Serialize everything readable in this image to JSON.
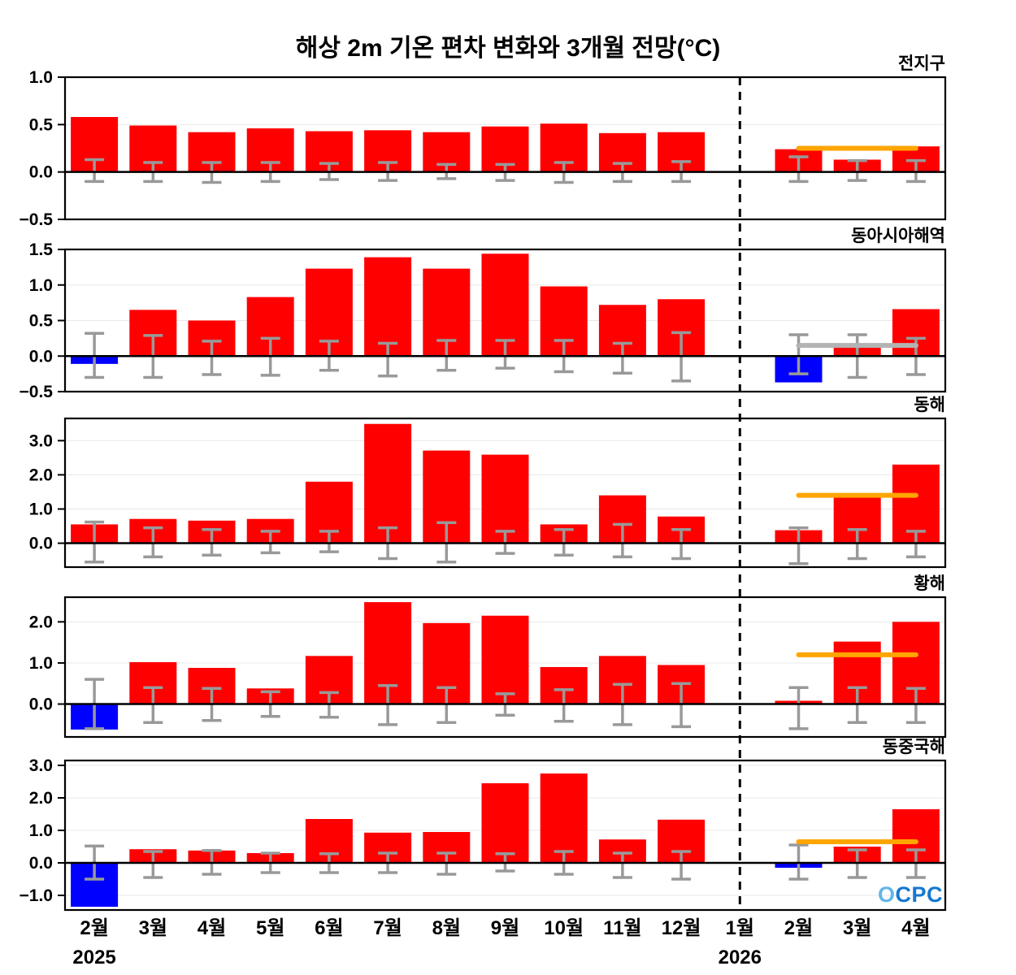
{
  "title": "해상 2m 기온 편차 변화와 3개월 전망(°C)",
  "logo": {
    "o": "O",
    "cpc": "CPC"
  },
  "colors": {
    "bar_positive": "#ff0000",
    "bar_negative": "#0000ff",
    "error_bar": "#999999",
    "forecast_orange": "#ffa500",
    "forecast_gray": "#b3b3b3",
    "axis": "#000000",
    "gridline": "#e8e8e8",
    "logo_o": "#63b5ea",
    "logo_cpc": "#1478d2"
  },
  "x_axis": {
    "labels": [
      "2월",
      "3월",
      "4월",
      "5월",
      "6월",
      "7월",
      "8월",
      "9월",
      "10월",
      "11월",
      "12월",
      "1월",
      "2월",
      "3월",
      "4월"
    ],
    "year_labels": [
      {
        "index": 0,
        "text": "2025"
      },
      {
        "index": 11,
        "text": "2026"
      }
    ],
    "dashed_line_at_index": 11
  },
  "chart_data": [
    {
      "type": "bar",
      "title": "전지구",
      "categories": [
        "2월",
        "3월",
        "4월",
        "5월",
        "6월",
        "7월",
        "8월",
        "9월",
        "10월",
        "11월",
        "12월",
        "1월",
        "2월",
        "3월",
        "4월"
      ],
      "ylim": [
        -0.5,
        1.0
      ],
      "yticks": [
        -0.5,
        0.0,
        0.5,
        1.0
      ],
      "values": [
        0.58,
        0.49,
        0.42,
        0.46,
        0.43,
        0.44,
        0.42,
        0.48,
        0.51,
        0.41,
        0.42,
        0,
        0.24,
        0.13,
        0.27
      ],
      "error_bars": [
        [
          -0.1,
          0.13
        ],
        [
          -0.1,
          0.1
        ],
        [
          -0.11,
          0.1
        ],
        [
          -0.1,
          0.1
        ],
        [
          -0.08,
          0.09
        ],
        [
          -0.09,
          0.1
        ],
        [
          -0.07,
          0.08
        ],
        [
          -0.09,
          0.08
        ],
        [
          -0.11,
          0.1
        ],
        [
          -0.1,
          0.09
        ],
        [
          -0.1,
          0.11
        ],
        null,
        [
          -0.1,
          0.16
        ],
        [
          -0.09,
          0.12
        ],
        [
          -0.1,
          0.12
        ]
      ],
      "forecast_line": {
        "value": 0.25,
        "color_key": "forecast_orange",
        "from_index": 12,
        "to_index": 14
      }
    },
    {
      "type": "bar",
      "title": "동아시아해역",
      "categories": [
        "2월",
        "3월",
        "4월",
        "5월",
        "6월",
        "7월",
        "8월",
        "9월",
        "10월",
        "11월",
        "12월",
        "1월",
        "2월",
        "3월",
        "4월"
      ],
      "ylim": [
        -0.5,
        1.5
      ],
      "yticks": [
        -0.5,
        0.0,
        0.5,
        1.0,
        1.5
      ],
      "values": [
        -0.11,
        0.65,
        0.5,
        0.83,
        1.23,
        1.39,
        1.23,
        1.44,
        0.98,
        0.72,
        0.8,
        0,
        -0.37,
        0.12,
        0.66
      ],
      "error_bars": [
        [
          -0.3,
          0.32
        ],
        [
          -0.3,
          0.29
        ],
        [
          -0.26,
          0.21
        ],
        [
          -0.27,
          0.25
        ],
        [
          -0.2,
          0.21
        ],
        [
          -0.28,
          0.18
        ],
        [
          -0.2,
          0.22
        ],
        [
          -0.17,
          0.22
        ],
        [
          -0.22,
          0.22
        ],
        [
          -0.24,
          0.18
        ],
        [
          -0.35,
          0.33
        ],
        null,
        [
          -0.25,
          0.3
        ],
        [
          -0.3,
          0.3
        ],
        [
          -0.26,
          0.25
        ]
      ],
      "forecast_line": {
        "value": 0.15,
        "color_key": "forecast_gray",
        "from_index": 12,
        "to_index": 14
      }
    },
    {
      "type": "bar",
      "title": "동해",
      "categories": [
        "2월",
        "3월",
        "4월",
        "5월",
        "6월",
        "7월",
        "8월",
        "9월",
        "10월",
        "11월",
        "12월",
        "1월",
        "2월",
        "3월",
        "4월"
      ],
      "ylim": [
        -0.7,
        3.65
      ],
      "yticks": [
        0.0,
        1.0,
        2.0,
        3.0
      ],
      "values": [
        0.55,
        0.71,
        0.66,
        0.71,
        1.8,
        3.49,
        2.71,
        2.59,
        0.55,
        1.4,
        0.78,
        0,
        0.38,
        1.4,
        2.3
      ],
      "error_bars": [
        [
          -0.55,
          0.62
        ],
        [
          -0.4,
          0.45
        ],
        [
          -0.35,
          0.4
        ],
        [
          -0.28,
          0.35
        ],
        [
          -0.25,
          0.35
        ],
        [
          -0.45,
          0.45
        ],
        [
          -0.55,
          0.6
        ],
        [
          -0.3,
          0.35
        ],
        [
          -0.35,
          0.4
        ],
        [
          -0.4,
          0.55
        ],
        [
          -0.45,
          0.4
        ],
        null,
        [
          -0.6,
          0.45
        ],
        [
          -0.45,
          0.4
        ],
        [
          -0.4,
          0.35
        ]
      ],
      "forecast_line": {
        "value": 1.4,
        "color_key": "forecast_orange",
        "from_index": 12,
        "to_index": 14
      }
    },
    {
      "type": "bar",
      "title": "황해",
      "categories": [
        "2월",
        "3월",
        "4월",
        "5월",
        "6월",
        "7월",
        "8월",
        "9월",
        "10월",
        "11월",
        "12월",
        "1월",
        "2월",
        "3월",
        "4월"
      ],
      "ylim": [
        -0.8,
        2.6
      ],
      "yticks": [
        0.0,
        1.0,
        2.0
      ],
      "values": [
        -0.62,
        1.02,
        0.88,
        0.38,
        1.17,
        2.48,
        1.97,
        2.15,
        0.9,
        1.17,
        0.95,
        0,
        0.08,
        1.52,
        2.0
      ],
      "error_bars": [
        [
          -0.6,
          0.6
        ],
        [
          -0.45,
          0.4
        ],
        [
          -0.4,
          0.38
        ],
        [
          -0.3,
          0.3
        ],
        [
          -0.32,
          0.28
        ],
        [
          -0.5,
          0.45
        ],
        [
          -0.45,
          0.4
        ],
        [
          -0.27,
          0.25
        ],
        [
          -0.42,
          0.35
        ],
        [
          -0.5,
          0.48
        ],
        [
          -0.55,
          0.5
        ],
        null,
        [
          -0.6,
          0.4
        ],
        [
          -0.45,
          0.4
        ],
        [
          -0.45,
          0.38
        ]
      ],
      "forecast_line": {
        "value": 1.2,
        "color_key": "forecast_orange",
        "from_index": 12,
        "to_index": 14
      }
    },
    {
      "type": "bar",
      "title": "동중국해",
      "categories": [
        "2월",
        "3월",
        "4월",
        "5월",
        "6월",
        "7월",
        "8월",
        "9월",
        "10월",
        "11월",
        "12월",
        "1월",
        "2월",
        "3월",
        "4월"
      ],
      "ylim": [
        -1.45,
        3.15
      ],
      "yticks": [
        -1.0,
        0.0,
        1.0,
        2.0,
        3.0
      ],
      "values": [
        -1.35,
        0.42,
        0.38,
        0.3,
        1.35,
        0.93,
        0.95,
        2.45,
        2.75,
        0.72,
        1.33,
        0,
        -0.15,
        0.5,
        1.65
      ],
      "error_bars": [
        [
          -0.5,
          0.52
        ],
        [
          -0.45,
          0.35
        ],
        [
          -0.35,
          0.38
        ],
        [
          -0.3,
          0.3
        ],
        [
          -0.3,
          0.28
        ],
        [
          -0.3,
          0.3
        ],
        [
          -0.35,
          0.3
        ],
        [
          -0.25,
          0.28
        ],
        [
          -0.35,
          0.35
        ],
        [
          -0.45,
          0.3
        ],
        [
          -0.5,
          0.35
        ],
        null,
        [
          -0.5,
          0.55
        ],
        [
          -0.45,
          0.4
        ],
        [
          -0.45,
          0.4
        ]
      ],
      "forecast_line": {
        "value": 0.65,
        "color_key": "forecast_orange",
        "from_index": 12,
        "to_index": 14
      }
    }
  ]
}
